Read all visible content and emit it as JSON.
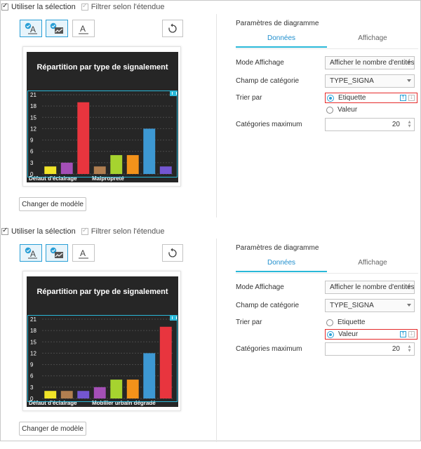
{
  "panels": [
    {
      "use_selection": {
        "label": "Utiliser la sélection",
        "checked": true
      },
      "filter_extent": {
        "label": "Filtrer selon l'étendue",
        "checked": true,
        "disabled": true
      },
      "toolbar": {
        "buttons": [
          {
            "icon": "text-style-icon",
            "active": true
          },
          {
            "icon": "chart-style-icon",
            "active": true
          },
          {
            "icon": "text-format-icon",
            "active": false
          }
        ],
        "refresh_icon": "refresh-icon"
      },
      "chart_data": {
        "type": "bar",
        "title": "Répartition par type de signalement",
        "ylim": [
          0,
          21
        ],
        "yticks": [
          0,
          3,
          6,
          9,
          12,
          15,
          18,
          21
        ],
        "tick_labels": [
          "Défaut d'éclairage",
          "Malpropreté"
        ],
        "values": [
          2,
          3,
          19,
          2,
          5,
          5,
          12,
          2
        ],
        "colors": [
          "#f0e428",
          "#a44fb6",
          "#e8353e",
          "#b07e50",
          "#a6d32f",
          "#f3921a",
          "#3d98d3",
          "#7356d1"
        ],
        "grid": true
      },
      "change_model_label": "Changer de modèle",
      "settings": {
        "title": "Paramètres de diagramme",
        "tabs": [
          "Données",
          "Affichage"
        ],
        "active_tab": 0,
        "display_mode": {
          "label": "Mode Affichage",
          "value": "Afficher le nombre d'entités pa"
        },
        "category_field": {
          "label": "Champ de catégorie",
          "value": "TYPE_SIGNA"
        },
        "sort": {
          "label": "Trier par",
          "options": [
            "Etiquette",
            "Valeur"
          ],
          "selected": 0
        },
        "max_categories": {
          "label": "Catégories maximum",
          "value": "20"
        }
      }
    },
    {
      "use_selection": {
        "label": "Utiliser la sélection",
        "checked": true
      },
      "filter_extent": {
        "label": "Filtrer selon l'étendue",
        "checked": true,
        "disabled": true
      },
      "toolbar": {
        "buttons": [
          {
            "icon": "text-style-icon",
            "active": true
          },
          {
            "icon": "chart-style-icon",
            "active": true
          },
          {
            "icon": "text-format-icon",
            "active": false
          }
        ],
        "refresh_icon": "refresh-icon"
      },
      "chart_data": {
        "type": "bar",
        "title": "Répartition par type de signalement",
        "ylim": [
          0,
          21
        ],
        "yticks": [
          0,
          3,
          6,
          9,
          12,
          15,
          18,
          21
        ],
        "tick_labels": [
          "Défaut d'éclairage",
          "Mobilier urbain dégradé"
        ],
        "values": [
          2,
          2,
          2,
          3,
          5,
          5,
          12,
          19
        ],
        "colors": [
          "#f0e428",
          "#b07e50",
          "#7356d1",
          "#a44fb6",
          "#a6d32f",
          "#f3921a",
          "#3d98d3",
          "#e8353e"
        ],
        "grid": true
      },
      "change_model_label": "Changer de modèle",
      "settings": {
        "title": "Paramètres de diagramme",
        "tabs": [
          "Données",
          "Affichage"
        ],
        "active_tab": 0,
        "display_mode": {
          "label": "Mode Affichage",
          "value": "Afficher le nombre d'entités pa"
        },
        "category_field": {
          "label": "Champ de catégorie",
          "value": "TYPE_SIGNA"
        },
        "sort": {
          "label": "Trier par",
          "options": [
            "Etiquette",
            "Valeur"
          ],
          "selected": 1
        },
        "max_categories": {
          "label": "Catégories maximum",
          "value": "20"
        }
      }
    }
  ]
}
